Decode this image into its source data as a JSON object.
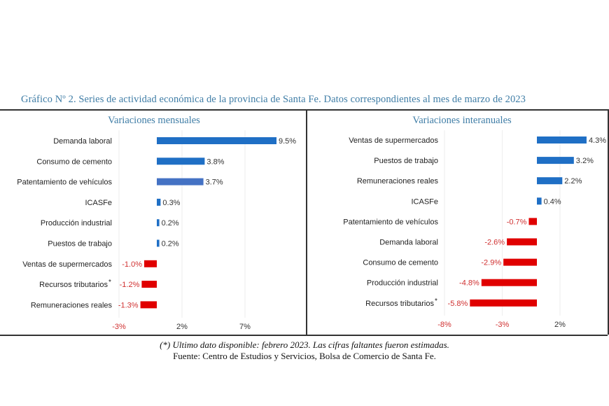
{
  "title": "Gráfico Nº 2. Series de actividad económica de la provincia de Santa Fe. Datos correspondientes al mes de marzo de 2023",
  "footnote": "(*) Ultimo dato disponible: febrero 2023. Las cifras faltantes fueron estimadas.",
  "source": "Fuente: Centro de Estudios y Servicios, Bolsa de Comercio de Santa Fe.",
  "colors": {
    "title": "#3f7da6",
    "positive": "#1f6fc5",
    "positive_alt": "#4472c4",
    "negative": "#e00000",
    "negative_label": "#d03030"
  },
  "chart_data": [
    {
      "type": "bar",
      "orientation": "horizontal",
      "title": "Variaciones mensuales",
      "categories": [
        "Demanda laboral",
        "Consumo de cemento",
        "Patentamiento de vehículos",
        "ICASFe",
        "Producción industrial",
        "Puestos de trabajo",
        "Ventas de supermercados",
        "Recursos tributarios",
        "Remuneraciones reales"
      ],
      "markers": [
        "",
        "",
        "",
        "",
        "",
        "",
        "",
        "*",
        ""
      ],
      "values": [
        9.5,
        3.8,
        3.7,
        0.3,
        0.2,
        0.2,
        -1.0,
        -1.2,
        -1.3
      ],
      "data_labels": [
        "9.5%",
        "3.8%",
        "3.7%",
        "0.3%",
        "0.2%",
        "0.2%",
        "-1.0%",
        "-1.2%",
        "-1.3%"
      ],
      "xticks": [
        "-3%",
        "2%",
        "7%"
      ],
      "xtick_values": [
        -3,
        2,
        7
      ],
      "xlim": [
        -3,
        10
      ],
      "grid": true
    },
    {
      "type": "bar",
      "orientation": "horizontal",
      "title": "Variaciones interanuales",
      "categories": [
        "Ventas de supermercados",
        "Puestos de trabajo",
        "Remuneraciones reales",
        "ICASFe",
        "Patentamiento de vehículos",
        "Demanda laboral",
        "Consumo de cemento",
        "Producción industrial",
        "Recursos tributarios"
      ],
      "markers": [
        "",
        "",
        "",
        "",
        "",
        "",
        "",
        "",
        "*"
      ],
      "values": [
        4.3,
        3.2,
        2.2,
        0.4,
        -0.7,
        -2.6,
        -2.9,
        -4.8,
        -5.8
      ],
      "data_labels": [
        "4.3%",
        "3.2%",
        "2.2%",
        "0.4%",
        "-0.7%",
        "-2.6%",
        "-2.9%",
        "-4.8%",
        "-5.8%"
      ],
      "xticks": [
        "-8%",
        "-3%",
        "2%"
      ],
      "xtick_values": [
        -8,
        -3,
        2
      ],
      "xlim": [
        -8,
        6
      ],
      "grid": true
    }
  ]
}
